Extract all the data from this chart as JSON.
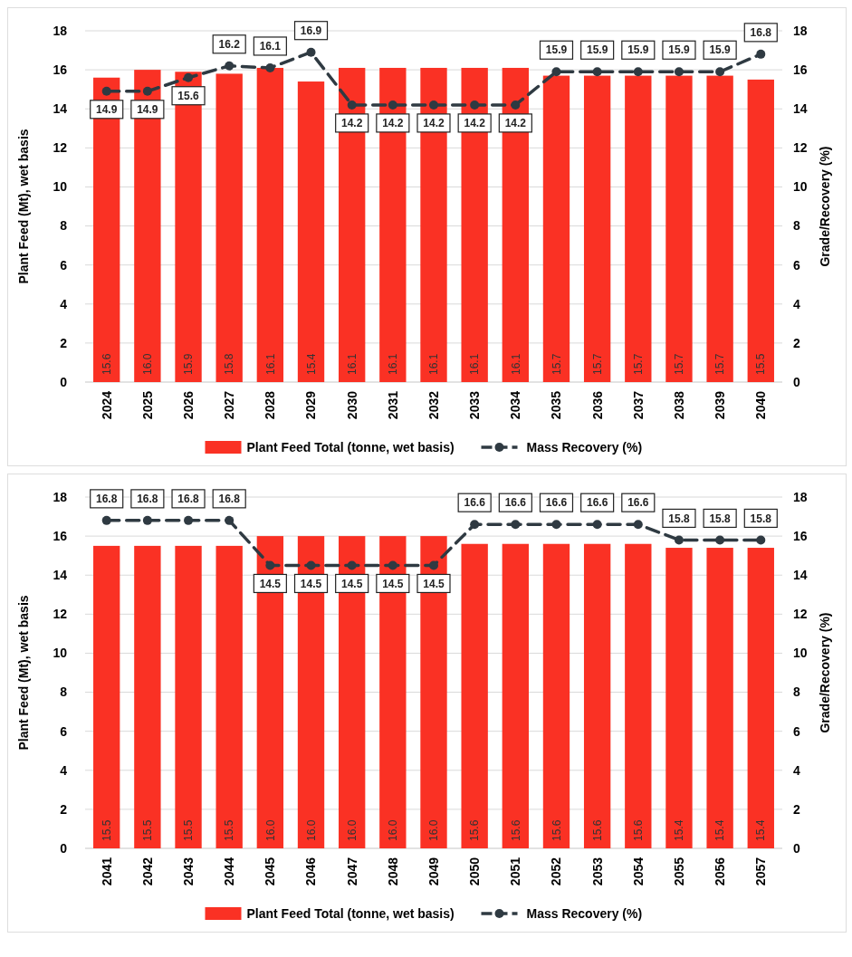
{
  "chart_data": [
    {
      "type": "bar",
      "categories": [
        "2024",
        "2025",
        "2026",
        "2027",
        "2028",
        "2029",
        "2030",
        "2031",
        "2032",
        "2033",
        "2034",
        "2035",
        "2036",
        "2037",
        "2038",
        "2039",
        "2040"
      ],
      "ylabel": "Plant Feed (Mt), wet basis",
      "y2label": "Grade/Recovery (%)",
      "ylim": [
        0,
        18
      ],
      "yticks": [
        0,
        2,
        4,
        6,
        8,
        10,
        12,
        14,
        16,
        18
      ],
      "y2lim": [
        0,
        18
      ],
      "y2ticks": [
        0,
        2,
        4,
        6,
        8,
        10,
        12,
        14,
        16,
        18
      ],
      "grid": "y",
      "legend": "bottom",
      "series": [
        {
          "name": "Plant Feed Total (tonne, wet basis)",
          "color": "#fa3124",
          "values": [
            15.6,
            16.0,
            15.9,
            15.8,
            16.1,
            15.4,
            16.1,
            16.1,
            16.1,
            16.1,
            16.1,
            15.7,
            15.7,
            15.7,
            15.7,
            15.7,
            15.5
          ],
          "value_labels": [
            "15.6",
            "16.0",
            "15.9",
            "15.8",
            "16.1",
            "15.4",
            "16.1",
            "16.1",
            "16.1",
            "16.1",
            "16.1",
            "15.7",
            "15.7",
            "15.7",
            "15.7",
            "15.7",
            "15.5"
          ]
        },
        {
          "name": "Mass Recovery (%)",
          "type": "line",
          "axis": "y2",
          "color": "#2f3a42",
          "marker": "circle",
          "line_style": "dashed",
          "values": [
            14.9,
            14.9,
            15.6,
            16.2,
            16.1,
            16.9,
            14.2,
            14.2,
            14.2,
            14.2,
            14.2,
            15.9,
            15.9,
            15.9,
            15.9,
            15.9,
            16.8
          ],
          "value_labels": [
            "14.9",
            "14.9",
            "15.6",
            "16.2",
            "16.1",
            "16.9",
            "14.2",
            "14.2",
            "14.2",
            "14.2",
            "14.2",
            "15.9",
            "15.9",
            "15.9",
            "15.9",
            "15.9",
            "16.8"
          ]
        }
      ]
    },
    {
      "type": "bar",
      "categories": [
        "2041",
        "2042",
        "2043",
        "2044",
        "2045",
        "2046",
        "2047",
        "2048",
        "2049",
        "2050",
        "2051",
        "2052",
        "2053",
        "2054",
        "2055",
        "2056",
        "2057"
      ],
      "ylabel": "Plant Feed (Mt), wet basis",
      "y2label": "Grade/Recovery (%)",
      "ylim": [
        0,
        18
      ],
      "yticks": [
        0,
        2,
        4,
        6,
        8,
        10,
        12,
        14,
        16,
        18
      ],
      "y2lim": [
        0,
        18
      ],
      "y2ticks": [
        0,
        2,
        4,
        6,
        8,
        10,
        12,
        14,
        16,
        18
      ],
      "grid": "y",
      "legend": "bottom",
      "series": [
        {
          "name": "Plant Feed Total (tonne, wet basis)",
          "color": "#fa3124",
          "values": [
            15.5,
            15.5,
            15.5,
            15.5,
            16.0,
            16.0,
            16.0,
            16.0,
            16.0,
            15.6,
            15.6,
            15.6,
            15.6,
            15.6,
            15.4,
            15.4,
            15.4
          ],
          "value_labels": [
            "15.5",
            "15.5",
            "15.5",
            "15.5",
            "16.0",
            "16.0",
            "16.0",
            "16.0",
            "16.0",
            "15.6",
            "15.6",
            "15.6",
            "15.6",
            "15.6",
            "15.4",
            "15.4",
            "15.4"
          ]
        },
        {
          "name": "Mass Recovery (%)",
          "type": "line",
          "axis": "y2",
          "color": "#2f3a42",
          "marker": "circle",
          "line_style": "dashed",
          "values": [
            16.8,
            16.8,
            16.8,
            16.8,
            14.5,
            14.5,
            14.5,
            14.5,
            14.5,
            16.6,
            16.6,
            16.6,
            16.6,
            16.6,
            15.8,
            15.8,
            15.8
          ],
          "value_labels": [
            "16.8",
            "16.8",
            "16.8",
            "16.8",
            "14.5",
            "14.5",
            "14.5",
            "14.5",
            "14.5",
            "16.6",
            "16.6",
            "16.6",
            "16.6",
            "16.6",
            "15.8",
            "15.8",
            "15.8"
          ]
        }
      ]
    }
  ]
}
